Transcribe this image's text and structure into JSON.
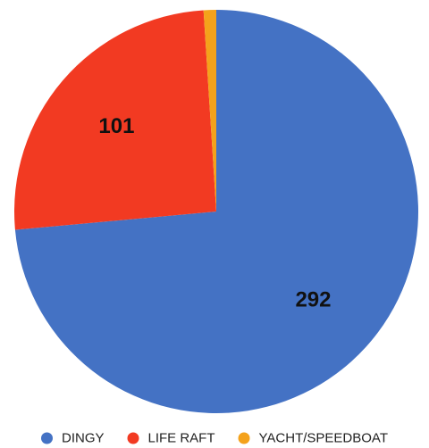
{
  "chart_data": {
    "type": "pie",
    "categories": [
      "DINGY",
      "LIFE RAFT",
      "YACHT/SPEEDBOAT"
    ],
    "values": [
      292,
      101,
      4
    ],
    "data_labels": [
      "292",
      "101",
      ""
    ],
    "colors": [
      "#4472C4",
      "#F23A22",
      "#F4A21B"
    ],
    "start_angle_deg": 0,
    "direction": "clockwise",
    "legend_position": "bottom",
    "title": ""
  }
}
